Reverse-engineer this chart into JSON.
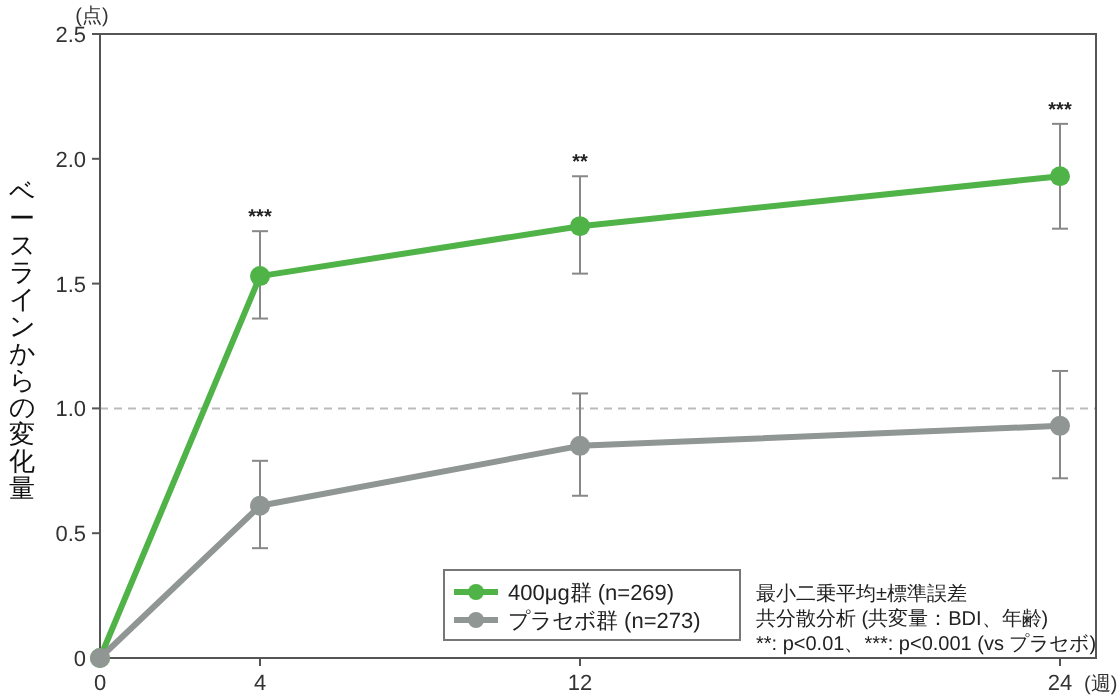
{
  "chart_data": {
    "type": "line",
    "xlabel": "(週)",
    "ylabel": "ベースラインからの変化量",
    "x": [
      0,
      4,
      12,
      24
    ],
    "xlim": [
      0,
      24.9
    ],
    "xticks": [
      0,
      4,
      12,
      24
    ],
    "ylim": [
      0,
      2.5
    ],
    "yticks": [
      {
        "value": 0,
        "label": "0"
      },
      {
        "value": 0.5,
        "label": "0.5"
      },
      {
        "value": 1,
        "label": "1.0"
      },
      {
        "value": 1.5,
        "label": "1.5"
      },
      {
        "value": 2,
        "label": "2.0"
      },
      {
        "value": 2.5,
        "label": "2.5"
      }
    ],
    "series": [
      {
        "name": "400μg群 (n=269)",
        "color": "#4fb348",
        "values": [
          0,
          1.53,
          1.73,
          1.93
        ],
        "errors": [
          null,
          [
            1.36,
            1.71
          ],
          [
            1.54,
            1.93
          ],
          [
            1.72,
            2.14
          ]
        ]
      },
      {
        "name": "プラセボ群 (n=273)",
        "color": "#8f9693",
        "values": [
          0,
          0.61,
          0.85,
          0.93
        ],
        "errors": [
          null,
          [
            0.44,
            0.79
          ],
          [
            0.65,
            1.06
          ],
          [
            0.72,
            1.15
          ]
        ]
      }
    ],
    "ref_lines": [
      {
        "axis": "y",
        "value": 1,
        "color": "#bbbbbb",
        "line_style": "dashed"
      }
    ],
    "marker": "circle",
    "grid": false,
    "legend": "bottom",
    "annotations": [
      "(点)",
      {
        "text": "***",
        "x": 4,
        "y": 1.71
      },
      {
        "text": "**",
        "x": 12,
        "y": 1.93
      },
      {
        "text": "***",
        "x": 24,
        "y": 2.14
      },
      "最小二乗平均±標準誤差",
      "共分散分析 (共変量：BDI、年齢)",
      "**: p<0.01、***: p<0.001 (vs プラセボ)"
    ]
  }
}
